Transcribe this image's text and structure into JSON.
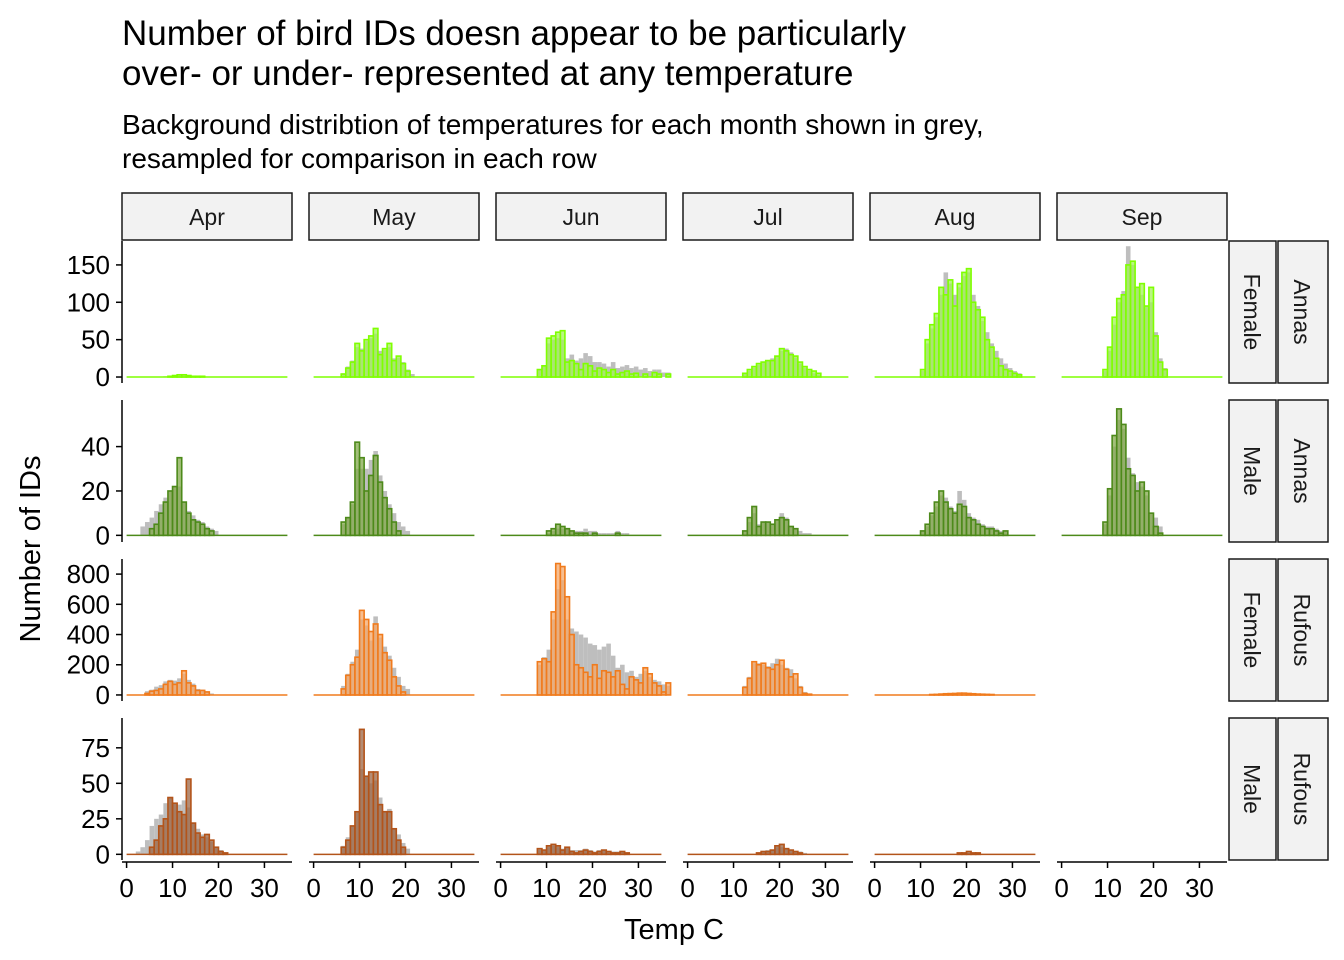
{
  "chart_data": {
    "type": "bar",
    "title_lines": [
      "Number of bird IDs doesn appear to be particularly",
      "over- or under- represented at any temperature"
    ],
    "subtitle_lines": [
      "Background distribtion of temperatures for each month shown in grey,",
      "resampled for comparison in each row"
    ],
    "xlabel": "Temp C",
    "ylabel": "Number of IDs",
    "x_ticks": [
      0,
      10,
      20,
      30
    ],
    "xlim": [
      -1,
      36
    ],
    "bin_width": 1,
    "background_color": "#bebebe",
    "months": [
      "Apr",
      "May",
      "Jun",
      "Jul",
      "Aug",
      "Sep"
    ],
    "rows": [
      {
        "species": "Annas",
        "sex": "Female",
        "fill": "#a3f25a",
        "stroke": "#7fff00",
        "y_ticks": [
          0,
          50,
          100,
          150
        ],
        "ylim": [
          -8,
          182
        ],
        "panels": [
          {
            "start": 0,
            "fg": [
              0,
              0,
              0,
              0,
              0,
              0,
              0,
              0,
              0,
              1,
              2,
              3,
              3,
              2,
              1,
              1,
              1,
              0,
              0,
              0,
              0,
              0,
              0,
              0,
              0,
              0,
              0,
              0,
              0,
              0,
              0,
              0,
              0,
              0,
              0,
              0
            ],
            "bg": [
              0,
              0,
              0,
              0,
              0,
              0,
              0,
              0,
              1,
              1,
              2,
              3,
              3,
              2,
              1,
              1,
              1,
              0,
              0,
              0,
              0,
              0,
              0,
              0,
              0,
              0,
              0,
              0,
              0,
              0,
              0,
              0,
              0,
              0,
              0,
              0
            ]
          },
          {
            "start": 6,
            "fg": [
              4,
              12,
              20,
              45,
              35,
              50,
              55,
              65,
              30,
              38,
              45,
              22,
              28,
              18,
              8,
              0
            ],
            "bg": [
              5,
              14,
              22,
              40,
              38,
              48,
              52,
              58,
              35,
              36,
              40,
              25,
              26,
              20,
              10,
              4
            ]
          },
          {
            "start": 8,
            "fg": [
              10,
              15,
              52,
              55,
              60,
              62,
              20,
              22,
              18,
              10,
              18,
              15,
              8,
              12,
              10,
              6,
              10,
              4,
              6,
              8,
              4,
              5,
              0,
              4,
              0,
              6,
              4,
              0,
              4
            ],
            "bg": [
              10,
              16,
              45,
              50,
              52,
              50,
              25,
              30,
              22,
              25,
              32,
              28,
              20,
              20,
              18,
              14,
              20,
              12,
              14,
              16,
              12,
              14,
              10,
              12,
              8,
              10,
              10,
              6,
              6
            ]
          },
          {
            "start": 12,
            "fg": [
              5,
              10,
              14,
              18,
              20,
              22,
              22,
              28,
              38,
              35,
              30,
              28,
              20,
              14,
              10,
              8,
              5
            ],
            "bg": [
              4,
              8,
              12,
              16,
              20,
              22,
              25,
              28,
              35,
              38,
              33,
              26,
              18,
              12,
              8,
              5,
              3
            ]
          },
          {
            "start": 10,
            "fg": [
              10,
              50,
              70,
              85,
              120,
              110,
              130,
              95,
              125,
              140,
              145,
              100,
              90,
              80,
              50,
              40,
              25,
              15,
              10,
              8,
              5,
              3
            ],
            "bg": [
              8,
              45,
              65,
              80,
              110,
              140,
              125,
              110,
              120,
              135,
              140,
              110,
              95,
              75,
              60,
              45,
              35,
              25,
              18,
              12,
              8,
              5
            ]
          },
          {
            "start": 9,
            "fg": [
              10,
              40,
              80,
              105,
              110,
              150,
              155,
              120,
              125,
              95,
              120,
              55,
              20,
              10
            ],
            "bg": [
              8,
              35,
              70,
              100,
              115,
              175,
              150,
              120,
              110,
              95,
              100,
              60,
              25,
              12
            ]
          }
        ]
      },
      {
        "species": "Annas",
        "sex": "Male",
        "fill": "#84a94e",
        "stroke": "#4d8a1a",
        "y_ticks": [
          0,
          20,
          40
        ],
        "ylim": [
          -3,
          61
        ],
        "panels": [
          {
            "start": 3,
            "fg": [
              0,
              0,
              3,
              5,
              10,
              15,
              20,
              22,
              35,
              15,
              10,
              7,
              6,
              5,
              3,
              2
            ],
            "bg": [
              4,
              6,
              8,
              11,
              14,
              17,
              20,
              22,
              22,
              15,
              11,
              9,
              7,
              6,
              4,
              3,
              2,
              0
            ]
          },
          {
            "start": 6,
            "fg": [
              6,
              8,
              15,
              42,
              35,
              20,
              27,
              36,
              24,
              17,
              12,
              6,
              2
            ],
            "bg": [
              5,
              8,
              14,
              30,
              30,
              30,
              34,
              38,
              27,
              20,
              14,
              10,
              6,
              4,
              2
            ]
          },
          {
            "start": 10,
            "fg": [
              2,
              3,
              5,
              4,
              3,
              2,
              1,
              1,
              1,
              0,
              1,
              0,
              0,
              0,
              0,
              1
            ],
            "bg": [
              1,
              2,
              3,
              3,
              3,
              2,
              2,
              2,
              3,
              2,
              2,
              1,
              1,
              1,
              1,
              2,
              1,
              1
            ]
          },
          {
            "start": 12,
            "fg": [
              2,
              8,
              13,
              4,
              6,
              6,
              5,
              7,
              8,
              7,
              4,
              3
            ],
            "bg": [
              2,
              6,
              10,
              5,
              6,
              6,
              5,
              7,
              10,
              8,
              4,
              3,
              2,
              1,
              1
            ]
          },
          {
            "start": 10,
            "fg": [
              2,
              5,
              10,
              15,
              20,
              15,
              12,
              10,
              14,
              13,
              8,
              7,
              5,
              4,
              3,
              3,
              2,
              1,
              2
            ],
            "bg": [
              2,
              4,
              9,
              13,
              18,
              17,
              13,
              11,
              20,
              16,
              10,
              8,
              7,
              5,
              4,
              4,
              3,
              2,
              2
            ]
          },
          {
            "start": 9,
            "fg": [
              6,
              21,
              45,
              57,
              50,
              30,
              27,
              20,
              24,
              20,
              10,
              4,
              1
            ],
            "bg": [
              5,
              18,
              40,
              52,
              48,
              35,
              28,
              24,
              22,
              18,
              10,
              8,
              4
            ]
          }
        ]
      },
      {
        "species": "Rufous",
        "sex": "Female",
        "fill": "#f4a86b",
        "stroke": "#f07b1d",
        "y_ticks": [
          0,
          200,
          400,
          600,
          800
        ],
        "ylim": [
          -40,
          900
        ],
        "panels": [
          {
            "start": 4,
            "fg": [
              10,
              25,
              30,
              40,
              70,
              90,
              70,
              80,
              160,
              80,
              60,
              30,
              30,
              20
            ],
            "bg": [
              25,
              35,
              55,
              65,
              90,
              100,
              95,
              110,
              140,
              100,
              75,
              40,
              35,
              25,
              10
            ]
          },
          {
            "start": 6,
            "fg": [
              40,
              130,
              200,
              250,
              560,
              500,
              420,
              470,
              400,
              280,
              230,
              120,
              60,
              20
            ],
            "bg": [
              60,
              140,
              220,
              300,
              500,
              460,
              360,
              520,
              380,
              320,
              260,
              180,
              120,
              60,
              40
            ]
          },
          {
            "start": 8,
            "fg": [
              220,
              240,
              220,
              550,
              870,
              850,
              650,
              400,
              200,
              180,
              150,
              120,
              200,
              110,
              160,
              150,
              120,
              160,
              70,
              40,
              120,
              100,
              80,
              180,
              140,
              80,
              60,
              20,
              80
            ],
            "bg": [
              200,
              250,
              300,
              500,
              700,
              760,
              500,
              440,
              420,
              400,
              380,
              340,
              330,
              300,
              320,
              340,
              260,
              180,
              200,
              150,
              160,
              120,
              140,
              160,
              120,
              100,
              90,
              70,
              60
            ]
          },
          {
            "start": 12,
            "fg": [
              50,
              110,
              220,
              200,
              210,
              180,
              170,
              200,
              230,
              170,
              120,
              140,
              50,
              10,
              5
            ],
            "bg": [
              60,
              120,
              210,
              210,
              200,
              190,
              210,
              240,
              200,
              180,
              170,
              110,
              60,
              20,
              10
            ]
          },
          {
            "start": 12,
            "fg": [
              3,
              4,
              6,
              8,
              9,
              10,
              12,
              12,
              10,
              8,
              6,
              5,
              4,
              3
            ],
            "bg": [
              3,
              4,
              6,
              7,
              8,
              9,
              10,
              10,
              9,
              8,
              6,
              5,
              4,
              3
            ]
          },
          null
        ]
      },
      {
        "species": "Rufous",
        "sex": "Male",
        "fill": "#9c6644",
        "stroke": "#b3541a",
        "y_ticks": [
          0,
          25,
          50,
          75
        ],
        "ylim": [
          -4,
          96
        ],
        "panels": [
          {
            "start": 2,
            "fg": [
              0,
              0,
              0,
              5,
              10,
              20,
              25,
              40,
              36,
              30,
              28,
              53,
              22,
              15,
              12,
              14,
              10,
              5,
              2,
              1
            ],
            "bg": [
              2,
              5,
              10,
              20,
              25,
              28,
              36,
              40,
              36,
              35,
              38,
              33,
              22,
              18,
              14,
              12,
              9,
              5,
              3,
              1
            ]
          },
          {
            "start": 6,
            "fg": [
              5,
              10,
              20,
              30,
              88,
              55,
              58,
              58,
              35,
              30,
              30,
              18,
              10,
              5
            ],
            "bg": [
              6,
              12,
              20,
              30,
              60,
              55,
              50,
              52,
              40,
              30,
              32,
              18,
              14,
              8,
              4
            ]
          },
          {
            "start": 8,
            "fg": [
              4,
              3,
              6,
              7,
              6,
              3,
              5,
              2,
              1,
              2,
              3,
              2,
              1,
              2,
              3,
              2,
              1,
              1,
              2,
              1
            ],
            "bg": [
              3,
              3,
              5,
              6,
              5,
              4,
              5,
              3,
              3,
              3,
              4,
              3,
              2,
              3,
              3,
              2,
              2,
              2,
              2,
              1
            ]
          },
          {
            "start": 15,
            "fg": [
              1,
              2,
              2,
              3,
              6,
              7,
              4,
              3,
              2,
              1
            ],
            "bg": [
              1,
              2,
              3,
              3,
              5,
              5,
              4,
              3,
              2,
              2,
              1
            ]
          },
          {
            "start": 18,
            "fg": [
              1,
              1,
              2,
              1,
              1
            ],
            "bg": [
              1,
              1,
              1,
              1,
              1
            ]
          },
          null
        ]
      }
    ]
  }
}
